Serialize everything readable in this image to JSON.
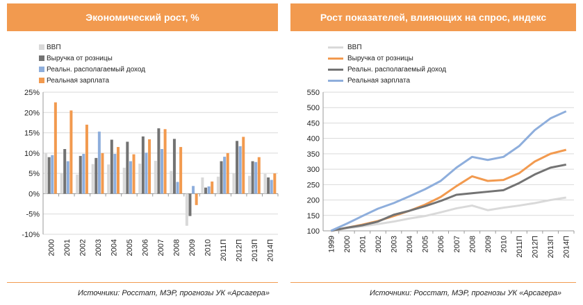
{
  "chart_data": [
    {
      "type": "bar",
      "title": "Экономический рост, %",
      "categories": [
        "2000",
        "2001",
        "2002",
        "2003",
        "2004",
        "2005",
        "2006",
        "2007",
        "2008",
        "2009",
        "2010",
        "2011П",
        "2012П",
        "2013П",
        "2014П"
      ],
      "ylim": [
        -10,
        25
      ],
      "yticks": [
        "25%",
        "20%",
        "15%",
        "10%",
        "5%",
        "0%",
        "-5%",
        "-10%"
      ],
      "ytick_values": [
        25,
        20,
        15,
        10,
        5,
        0,
        -5,
        -10
      ],
      "grid": true,
      "legend": "top-left",
      "series": [
        {
          "name": "ВВП",
          "color": "#d9d9d9",
          "values": [
            10,
            5.1,
            4.7,
            7.3,
            7.2,
            6.4,
            7.4,
            8.1,
            5.6,
            -7.9,
            4,
            4.2,
            5,
            4.4,
            4.9
          ]
        },
        {
          "name": "Выручка от розницы",
          "color": "#737373",
          "values": [
            9,
            11,
            9.3,
            8.8,
            13.3,
            12.8,
            14.1,
            16.1,
            13.5,
            -5.5,
            1.5,
            8,
            13,
            8,
            4
          ]
        },
        {
          "name": "Реальн. располагаемый доход",
          "color": "#8eaedc",
          "values": [
            9.5,
            8,
            9.8,
            15.3,
            9.8,
            8,
            10.1,
            11,
            2.9,
            1.9,
            1.8,
            9.1,
            11.7,
            7.8,
            3.4
          ]
        },
        {
          "name": "Реальная зарплата",
          "color": "#f29a4f",
          "values": [
            22.5,
            20.5,
            17,
            10,
            11.5,
            9.7,
            13.4,
            15.9,
            11.5,
            -2.8,
            3,
            10,
            14,
            9,
            5
          ]
        }
      ]
    },
    {
      "type": "line",
      "title": "Рост показателей, влияющих на спрос, индекс",
      "categories": [
        "1999",
        "2000",
        "2001",
        "2002",
        "2003",
        "2004",
        "2005",
        "2006",
        "2007",
        "2008",
        "2009",
        "2010",
        "2011П",
        "2012П",
        "2013П",
        "2014П"
      ],
      "ylim": [
        100,
        550
      ],
      "yticks": [
        "550",
        "500",
        "450",
        "400",
        "350",
        "300",
        "250",
        "200",
        "150",
        "100"
      ],
      "ytick_values": [
        550,
        500,
        450,
        400,
        350,
        300,
        250,
        200,
        150,
        100
      ],
      "grid": true,
      "legend": "top-left",
      "series": [
        {
          "name": "ВВП",
          "color": "#d9d9d9",
          "values": [
            100,
            108,
            115,
            122,
            130,
            140,
            148,
            160,
            173,
            182,
            167,
            175,
            182,
            190,
            200,
            208
          ]
        },
        {
          "name": "Выручка от розницы",
          "color": "#f29a4f",
          "values": [
            100,
            110,
            120,
            132,
            148,
            165,
            185,
            210,
            245,
            277,
            262,
            265,
            287,
            325,
            350,
            363
          ]
        },
        {
          "name": "Реальн. располагаемый доход",
          "color": "#737373",
          "values": [
            100,
            110,
            118,
            130,
            152,
            165,
            180,
            197,
            217,
            222,
            227,
            232,
            255,
            283,
            305,
            315
          ]
        },
        {
          "name": "Реальная зарплата",
          "color": "#8eaedc",
          "values": [
            100,
            123,
            148,
            172,
            190,
            212,
            235,
            262,
            305,
            340,
            330,
            340,
            375,
            427,
            465,
            488
          ]
        }
      ]
    }
  ],
  "source": "Источники: Росстат, МЭР, прогнозы УК «Арсагера»"
}
